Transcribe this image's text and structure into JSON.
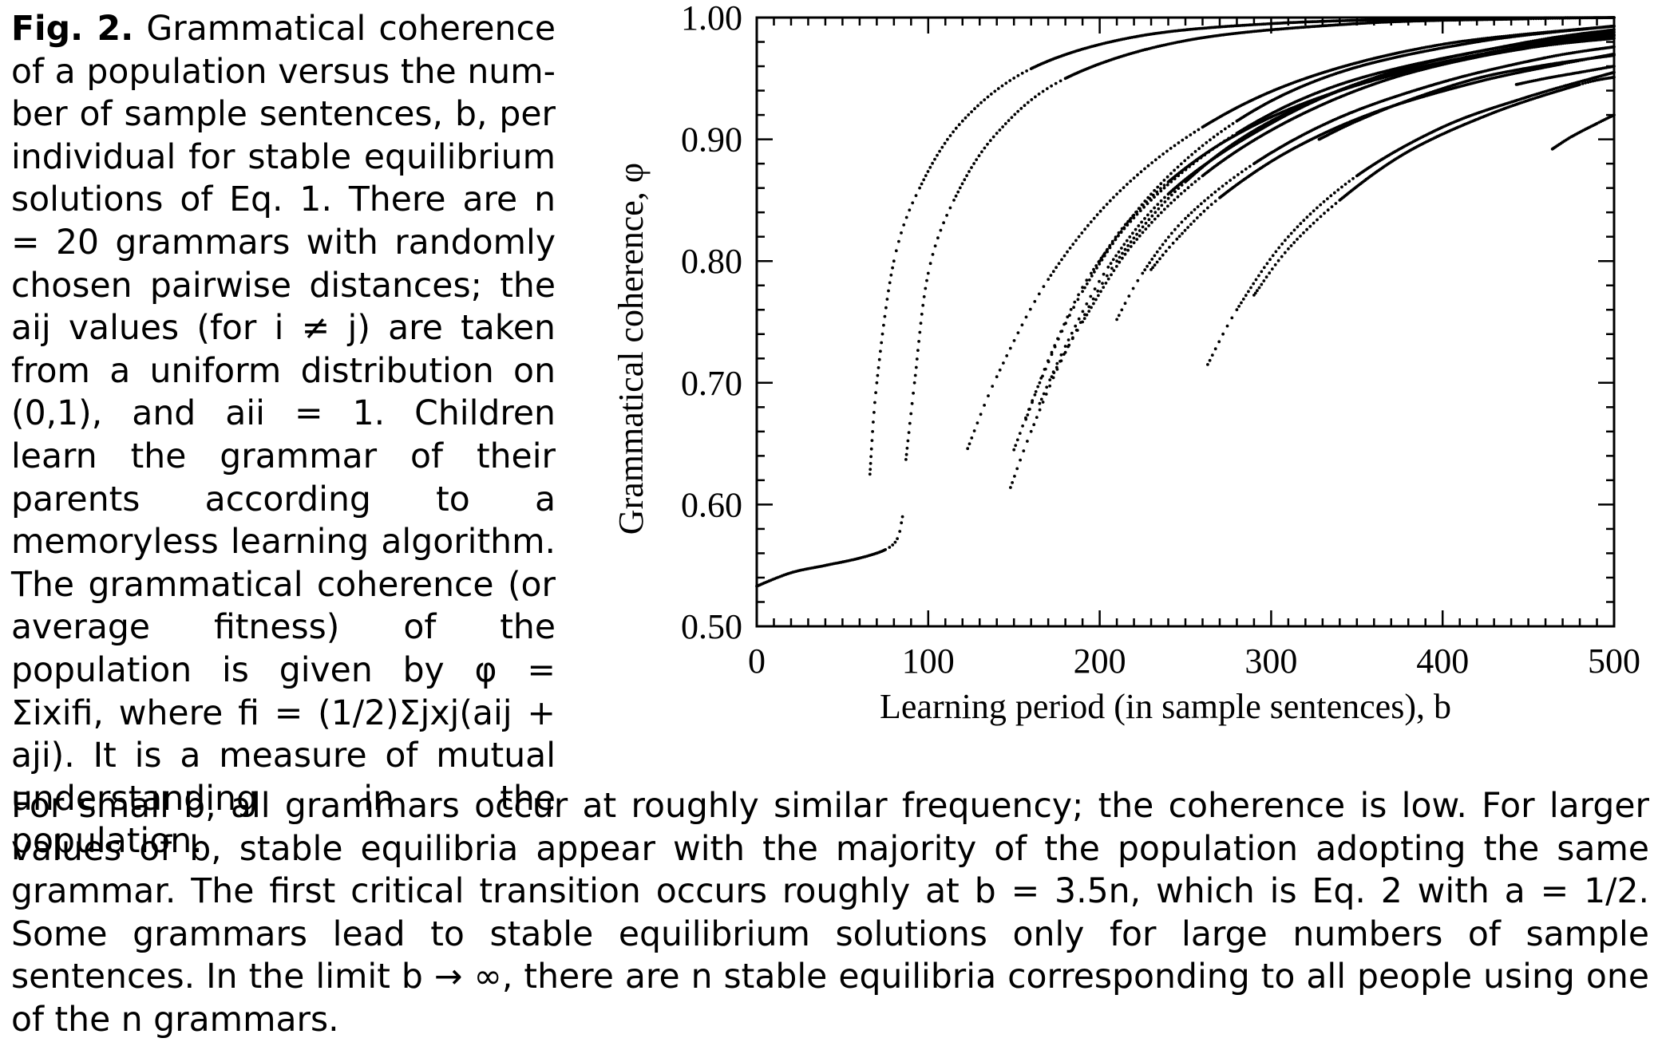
{
  "caption": {
    "fig_label": "Fig. 2.",
    "side_text": "Grammatical coherence of a population versus the num­ber of sample sentences, b, per individual for stable equilibrium solutions of Eq. 1. There are n = 20 grammars with randomly chosen pairwise distances; the aij values (for i ≠ j) are taken from a uniform distribution on (0,1), and aii = 1. Children learn the grammar of their parents ac­cording to a memoryless learn­ing algorithm. The grammatical coherence (or average fitness) of the population is given by φ = Σixifi, where fi = (1/2)Σjxj(aij + aji). It is a measure of mutual understanding in the population.",
    "bottom_text": "For small b, all grammars occur at roughly similar frequency; the coherence is low. For larger values of b, stable equilibria appear with the majority of the population adopting the same grammar. The first critical transition occurs roughly at b = 3.5n, which is Eq. 2 with a = 1/2. Some grammars lead to stable equilibrium solutions only for large numbers of sample sentences. In the limit b → ∞, there are n stable equilibria corresponding to all people using one of the n grammars."
  },
  "chart_data": {
    "type": "scatter",
    "xlabel": "Learning period (in sample sentences), b",
    "ylabel": "Grammatical coherence, φ",
    "xlim": [
      0,
      500
    ],
    "ylim": [
      0.5,
      1.0
    ],
    "x_ticks": [
      "0",
      "100",
      "200",
      "300",
      "400",
      "500"
    ],
    "y_ticks": [
      "0.50",
      "0.60",
      "0.70",
      "0.80",
      "0.90",
      "1.00"
    ],
    "grid": false,
    "marker_color": "#000000",
    "series": [
      {
        "x": [
          0,
          20,
          40,
          60,
          75,
          82,
          85
        ],
        "y": [
          0.533,
          0.544,
          0.55,
          0.556,
          0.563,
          0.572,
          0.59
        ]
      },
      {
        "x": [
          66,
          70,
          80,
          95,
          120,
          160,
          220,
          300,
          400,
          500
        ],
        "y": [
          0.625,
          0.7,
          0.8,
          0.86,
          0.915,
          0.958,
          0.984,
          0.995,
          0.999,
          1.0
        ]
      },
      {
        "x": [
          87,
          92,
          100,
          115,
          140,
          180,
          250,
          350,
          450,
          500
        ],
        "y": [
          0.637,
          0.7,
          0.79,
          0.85,
          0.905,
          0.95,
          0.981,
          0.995,
          0.999,
          1.0
        ]
      },
      {
        "x": [
          123,
          140,
          170,
          210,
          260,
          320,
          400,
          500
        ],
        "y": [
          0.646,
          0.705,
          0.785,
          0.855,
          0.91,
          0.95,
          0.978,
          0.993
        ]
      },
      {
        "x": [
          148,
          160,
          180,
          210,
          250,
          300,
          370,
          450,
          500
        ],
        "y": [
          0.614,
          0.66,
          0.725,
          0.8,
          0.865,
          0.915,
          0.955,
          0.98,
          0.99
        ]
      },
      {
        "x": [
          150,
          165,
          190,
          230,
          280,
          340,
          420,
          500
        ],
        "y": [
          0.645,
          0.7,
          0.775,
          0.855,
          0.915,
          0.955,
          0.98,
          0.993
        ]
      },
      {
        "x": [
          157,
          172,
          195,
          230,
          280,
          340,
          420,
          500
        ],
        "y": [
          0.67,
          0.725,
          0.79,
          0.85,
          0.905,
          0.945,
          0.972,
          0.988
        ]
      },
      {
        "x": [
          165,
          180,
          205,
          240,
          290,
          350,
          430,
          500
        ],
        "y": [
          0.683,
          0.73,
          0.795,
          0.855,
          0.905,
          0.945,
          0.972,
          0.986
        ]
      },
      {
        "x": [
          172,
          190,
          220,
          260,
          310,
          370,
          440,
          500
        ],
        "y": [
          0.705,
          0.75,
          0.815,
          0.87,
          0.915,
          0.95,
          0.973,
          0.985
        ]
      },
      {
        "x": [
          200,
          215,
          240,
          275,
          320,
          380,
          450,
          500
        ],
        "y": [
          0.8,
          0.83,
          0.865,
          0.9,
          0.93,
          0.956,
          0.975,
          0.983
        ]
      },
      {
        "x": [
          210,
          225,
          250,
          290,
          340,
          400,
          460,
          500
        ],
        "y": [
          0.752,
          0.79,
          0.835,
          0.88,
          0.918,
          0.947,
          0.967,
          0.976
        ]
      },
      {
        "x": [
          230,
          245,
          270,
          310,
          360,
          420,
          470,
          500
        ],
        "y": [
          0.793,
          0.818,
          0.852,
          0.89,
          0.922,
          0.947,
          0.962,
          0.97
        ]
      },
      {
        "x": [
          263,
          280,
          310,
          350,
          400,
          450,
          500
        ],
        "y": [
          0.715,
          0.76,
          0.82,
          0.87,
          0.91,
          0.935,
          0.955
        ]
      },
      {
        "x": [
          290,
          310,
          340,
          380,
          430,
          480,
          500
        ],
        "y": [
          0.772,
          0.81,
          0.85,
          0.89,
          0.922,
          0.945,
          0.951
        ]
      },
      {
        "x": [
          328,
          350,
          380,
          420,
          460,
          500
        ],
        "y": [
          0.9,
          0.915,
          0.932,
          0.95,
          0.961,
          0.969
        ]
      },
      {
        "x": [
          443,
          460,
          480,
          500
        ],
        "y": [
          0.945,
          0.95,
          0.955,
          0.96
        ]
      },
      {
        "x": [
          464,
          475,
          490,
          500
        ],
        "y": [
          0.892,
          0.902,
          0.913,
          0.92
        ]
      }
    ]
  }
}
